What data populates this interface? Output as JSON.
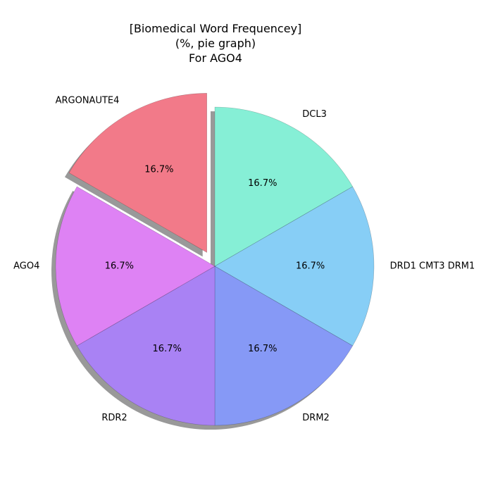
{
  "chart_data": {
    "type": "pie",
    "title_lines": [
      "[Biomedical Word Frequencey]",
      "(%, pie graph)",
      "For AGO4"
    ],
    "slices": [
      {
        "label": "DCL3",
        "value": 16.7,
        "pct_text": "16.7%",
        "color": "#86efd6",
        "explode": false
      },
      {
        "label": "DRD1 CMT3 DRM1",
        "value": 16.7,
        "pct_text": "16.7%",
        "color": "#87cef6",
        "explode": false
      },
      {
        "label": "DRM2",
        "value": 16.7,
        "pct_text": "16.7%",
        "color": "#8699f6",
        "explode": false
      },
      {
        "label": "RDR2",
        "value": 16.7,
        "pct_text": "16.7%",
        "color": "#a982f4",
        "explode": false
      },
      {
        "label": "AGO4",
        "value": 16.7,
        "pct_text": "16.7%",
        "color": "#de82f4",
        "explode": false
      },
      {
        "label": "ARGONAUTE4",
        "value": 16.7,
        "pct_text": "16.7%",
        "color": "#f27a89",
        "explode": true
      }
    ],
    "shadow": true,
    "start_angle_deg": 90,
    "direction": "clockwise"
  }
}
